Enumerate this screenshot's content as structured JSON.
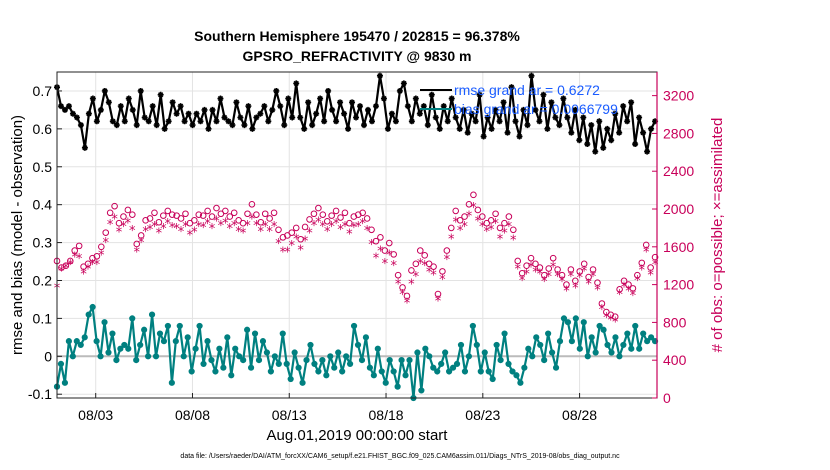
{
  "chart_data": {
    "type": "line",
    "title_line1": "Southern Hemisphere 195470 / 202815 = 96.378%",
    "title_line2": "GPSRO_REFRACTIVITY @ 9830 m",
    "xlabel": "Aug.01,2019 00:00:00 start",
    "ylabel_left": "rmse and bias (model - observation)",
    "ylabel_right": "# of obs: o=possible; ×=assimilated",
    "footer": "data file: /Users/raeder/DAI/ATM_forcXX/CAM6_setup/f.e21.FHIST_BGC.f09_025.CAM6assim.011/Diags_NTrS_2019-08/obs_diag_output.nc",
    "x_ticks": [
      {
        "day": 3,
        "label": "08/03"
      },
      {
        "day": 8,
        "label": "08/08"
      },
      {
        "day": 13,
        "label": "08/13"
      },
      {
        "day": 18,
        "label": "08/18"
      },
      {
        "day": 23,
        "label": "08/23"
      },
      {
        "day": 28,
        "label": "08/28"
      }
    ],
    "xlim": [
      1.0,
      32.0
    ],
    "ylim_left": [
      -0.11,
      0.75
    ],
    "ylim_right": [
      0,
      3450
    ],
    "yticks_left": [
      "-0.1",
      "0",
      "0.1",
      "0.2",
      "0.3",
      "0.4",
      "0.5",
      "0.6",
      "0.7"
    ],
    "yticks_right": [
      "0",
      "400",
      "800",
      "1200",
      "1600",
      "2000",
      "2400",
      "2800",
      "3200"
    ],
    "legend": [
      {
        "name": "rmse grand",
        "label": "rmse grand ar = 0.6272"
      },
      {
        "name": "bias grand",
        "label": "bias grand ar = 0.0066799"
      }
    ],
    "colors": {
      "rmse": "#000000",
      "bias": "#008080",
      "obs": "#c8005a",
      "zero": "#bbbbbb",
      "legend_text": "#1a5cff"
    },
    "series": [
      {
        "name": "rmse",
        "axis": "left",
        "values": [
          0.71,
          0.66,
          0.65,
          0.66,
          0.64,
          0.63,
          0.61,
          0.55,
          0.64,
          0.68,
          0.62,
          0.65,
          0.7,
          0.67,
          0.62,
          0.61,
          0.66,
          0.62,
          0.68,
          0.65,
          0.61,
          0.7,
          0.63,
          0.62,
          0.66,
          0.61,
          0.69,
          0.6,
          0.62,
          0.67,
          0.64,
          0.66,
          0.62,
          0.64,
          0.61,
          0.64,
          0.62,
          0.65,
          0.6,
          0.65,
          0.62,
          0.68,
          0.63,
          0.62,
          0.61,
          0.67,
          0.63,
          0.61,
          0.66,
          0.6,
          0.63,
          0.64,
          0.66,
          0.62,
          0.65,
          0.7,
          0.66,
          0.61,
          0.68,
          0.63,
          0.72,
          0.63,
          0.6,
          0.67,
          0.61,
          0.64,
          0.68,
          0.62,
          0.7,
          0.65,
          0.62,
          0.67,
          0.64,
          0.6,
          0.67,
          0.63,
          0.66,
          0.61,
          0.65,
          0.62,
          0.66,
          0.74,
          0.68,
          0.6,
          0.64,
          0.62,
          0.7,
          0.72,
          0.66,
          0.62,
          0.68,
          0.64,
          0.66,
          0.61,
          0.69,
          0.63,
          0.6,
          0.66,
          0.62,
          0.68,
          0.63,
          0.6,
          0.65,
          0.59,
          0.64,
          0.62,
          0.69,
          0.58,
          0.63,
          0.6,
          0.65,
          0.62,
          0.67,
          0.59,
          0.71,
          0.62,
          0.58,
          0.65,
          0.61,
          0.74,
          0.65,
          0.62,
          0.69,
          0.6,
          0.67,
          0.63,
          0.61,
          0.68,
          0.63,
          0.59,
          0.65,
          0.57,
          0.63,
          0.56,
          0.61,
          0.54,
          0.62,
          0.55,
          0.6,
          0.57,
          0.64,
          0.59,
          0.66,
          0.62,
          0.67,
          0.56,
          0.63,
          0.59,
          0.54,
          0.6,
          0.62
        ]
      },
      {
        "name": "bias",
        "axis": "left",
        "values": [
          -0.08,
          -0.02,
          -0.07,
          0.04,
          0.0,
          0.04,
          0.03,
          0.05,
          0.11,
          0.13,
          0.04,
          0.0,
          0.09,
          0.01,
          0.06,
          -0.01,
          0.02,
          0.03,
          0.02,
          0.1,
          -0.01,
          0.03,
          0.07,
          0.0,
          0.11,
          0.0,
          0.06,
          0.04,
          0.08,
          -0.07,
          0.04,
          0.08,
          0.0,
          0.05,
          -0.04,
          0.02,
          0.08,
          -0.02,
          0.04,
          -0.01,
          -0.04,
          0.02,
          -0.03,
          0.05,
          -0.05,
          0.02,
          0.0,
          -0.01,
          0.07,
          -0.03,
          0.06,
          -0.01,
          0.04,
          0.01,
          -0.04,
          0.0,
          -0.02,
          0.06,
          -0.02,
          -0.06,
          0.01,
          -0.03,
          -0.07,
          -0.01,
          0.03,
          -0.02,
          -0.04,
          -0.01,
          -0.05,
          0.0,
          -0.03,
          0.01,
          -0.04,
          0.0,
          -0.02,
          0.08,
          0.03,
          -0.01,
          0.05,
          -0.03,
          -0.05,
          0.02,
          -0.04,
          -0.07,
          -0.01,
          -0.04,
          -0.08,
          -0.01,
          -0.05,
          -0.01,
          -0.11,
          0.01,
          -0.09,
          0.02,
          0.0,
          -0.03,
          -0.04,
          -0.02,
          0.01,
          -0.04,
          -0.03,
          -0.02,
          0.03,
          -0.04,
          0.0,
          0.08,
          0.03,
          -0.04,
          0.01,
          -0.04,
          -0.06,
          0.03,
          -0.01,
          0.06,
          -0.02,
          -0.04,
          -0.05,
          -0.07,
          -0.03,
          0.02,
          0.0,
          0.05,
          0.03,
          -0.01,
          0.06,
          0.01,
          -0.03,
          0.04,
          0.1,
          0.09,
          0.04,
          0.1,
          0.02,
          0.09,
          0.0,
          0.05,
          0.01,
          0.08,
          0.07,
          0.03,
          0.01,
          0.05,
          0.0,
          0.03,
          0.06,
          0.02,
          0.08,
          0.02,
          0.06,
          0.04,
          0.05,
          0.04
        ]
      },
      {
        "name": "obs possible",
        "axis": "right",
        "values": [
          1450,
          1380,
          1400,
          1450,
          1560,
          1610,
          1390,
          1420,
          1480,
          1500,
          1600,
          1750,
          1960,
          2030,
          1850,
          1920,
          1990,
          1940,
          1630,
          1720,
          1880,
          1900,
          1960,
          1860,
          1930,
          1980,
          1940,
          1930,
          1900,
          1950,
          1850,
          1880,
          1940,
          1930,
          1980,
          1920,
          2010,
          1950,
          1980,
          1920,
          1960,
          1880,
          1850,
          1950,
          2050,
          1940,
          1860,
          1950,
          1900,
          1960,
          1780,
          1700,
          1720,
          1750,
          1800,
          1680,
          1810,
          1890,
          1950,
          2010,
          1940,
          1870,
          1930,
          1980,
          1910,
          1960,
          1850,
          1920,
          1940,
          1960,
          1900,
          1780,
          1660,
          1700,
          1560,
          1640,
          1520,
          1300,
          1170,
          1080,
          1350,
          1420,
          1560,
          1510,
          1420,
          1390,
          1100,
          1340,
          1560,
          1800,
          1980,
          1880,
          1920,
          2050,
          2150,
          1990,
          1920,
          1850,
          1880,
          1950,
          1800,
          1850,
          1920,
          1780,
          1450,
          1320,
          1400,
          1480,
          1420,
          1380,
          1300,
          1370,
          1480,
          1360,
          1300,
          1200,
          1360,
          1240,
          1340,
          1420,
          1280,
          1360,
          1220,
          1000,
          910,
          880,
          860,
          1150,
          1240,
          1200,
          1160,
          1300,
          1430,
          1620,
          1380,
          1490
        ]
      },
      {
        "name": "obs assimilated",
        "axis": "right",
        "values": [
          1180,
          1360,
          1390,
          1430,
          1510,
          1490,
          1330,
          1380,
          1430,
          1430,
          1530,
          1660,
          1850,
          1910,
          1770,
          1830,
          1870,
          1790,
          1560,
          1660,
          1780,
          1800,
          1830,
          1760,
          1810,
          1860,
          1820,
          1810,
          1780,
          1830,
          1740,
          1770,
          1830,
          1820,
          1860,
          1810,
          1890,
          1840,
          1870,
          1810,
          1840,
          1780,
          1760,
          1840,
          1910,
          1840,
          1780,
          1830,
          1780,
          1830,
          1650,
          1560,
          1560,
          1630,
          1700,
          1580,
          1680,
          1760,
          1840,
          1880,
          1830,
          1780,
          1830,
          1860,
          1800,
          1830,
          1750,
          1820,
          1830,
          1860,
          1790,
          1640,
          1500,
          1570,
          1440,
          1530,
          1420,
          1220,
          1110,
          1020,
          1220,
          1300,
          1440,
          1420,
          1350,
          1320,
          1040,
          1270,
          1480,
          1700,
          1880,
          1790,
          1830,
          1940,
          2030,
          1890,
          1830,
          1780,
          1800,
          1860,
          1700,
          1760,
          1830,
          1690,
          1380,
          1260,
          1330,
          1400,
          1350,
          1330,
          1250,
          1300,
          1400,
          1300,
          1250,
          1150,
          1300,
          1180,
          1290,
          1360,
          1220,
          1300,
          1160,
          950,
          870,
          840,
          820,
          1110,
          1190,
          1150,
          1100,
          1260,
          1370,
          1560,
          1320,
          1430
        ]
      }
    ]
  }
}
